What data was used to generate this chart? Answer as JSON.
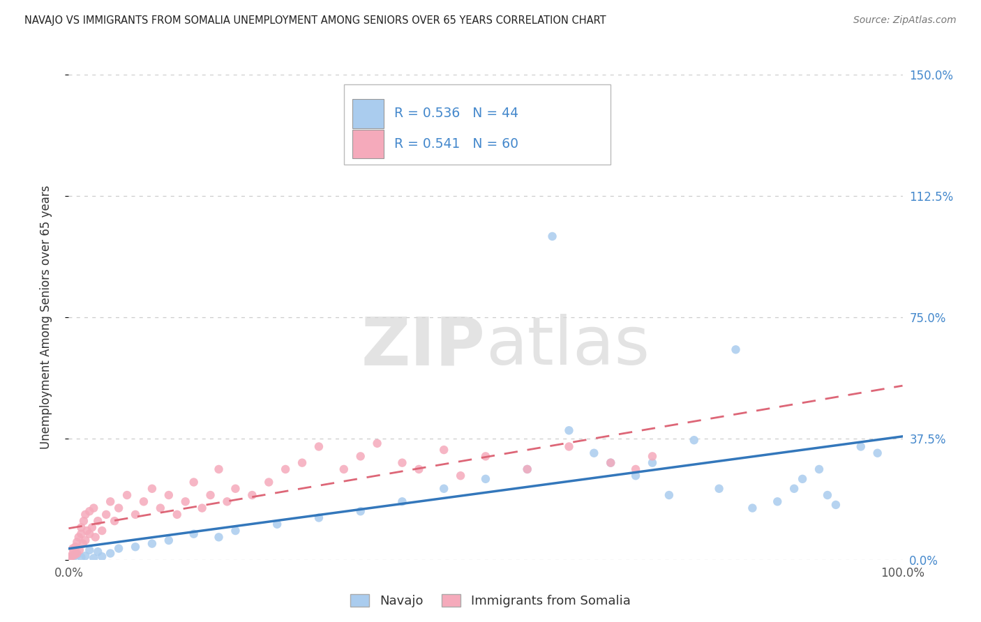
{
  "title": "NAVAJO VS IMMIGRANTS FROM SOMALIA UNEMPLOYMENT AMONG SENIORS OVER 65 YEARS CORRELATION CHART",
  "source": "Source: ZipAtlas.com",
  "ylabel": "Unemployment Among Seniors over 65 years",
  "xlim": [
    0,
    100
  ],
  "ylim": [
    0,
    150
  ],
  "xticks": [
    0,
    25,
    50,
    75,
    100
  ],
  "xtick_labels": [
    "0.0%",
    "",
    "",
    "",
    "100.0%"
  ],
  "yticks": [
    0,
    37.5,
    75,
    112.5,
    150
  ],
  "ytick_labels_right": [
    "0.0%",
    "37.5%",
    "75.0%",
    "112.5%",
    "150.0%"
  ],
  "navajo_R": "0.536",
  "navajo_N": "44",
  "somalia_R": "0.541",
  "somalia_N": "60",
  "navajo_dot_color": "#aaccee",
  "somalia_dot_color": "#f5aabb",
  "navajo_line_color": "#3377bb",
  "somalia_line_color": "#dd6677",
  "legend_navajo": "Navajo",
  "legend_somalia": "Immigrants from Somalia",
  "background_color": "#ffffff",
  "grid_color": "#cccccc",
  "title_color": "#222222",
  "source_color": "#777777",
  "right_tick_color": "#4488cc",
  "legend_text_color": "#4488cc",
  "navajo_x": [
    0.3,
    0.5,
    0.8,
    1.0,
    1.5,
    2.0,
    2.5,
    3.0,
    3.5,
    4.0,
    5.0,
    6.0,
    8.0,
    10.0,
    12.0,
    15.0,
    18.0,
    20.0,
    25.0,
    30.0,
    35.0,
    40.0,
    45.0,
    50.0,
    55.0,
    58.0,
    60.0,
    63.0,
    65.0,
    68.0,
    70.0,
    72.0,
    75.0,
    78.0,
    80.0,
    82.0,
    85.0,
    87.0,
    88.0,
    90.0,
    91.0,
    92.0,
    95.0,
    97.0
  ],
  "navajo_y": [
    1.0,
    0.5,
    2.0,
    1.5,
    0.8,
    1.2,
    3.0,
    0.5,
    2.5,
    1.0,
    2.0,
    3.5,
    4.0,
    5.0,
    6.0,
    8.0,
    7.0,
    9.0,
    11.0,
    13.0,
    15.0,
    18.0,
    22.0,
    25.0,
    28.0,
    100.0,
    40.0,
    33.0,
    30.0,
    26.0,
    30.0,
    20.0,
    37.0,
    22.0,
    65.0,
    16.0,
    18.0,
    22.0,
    25.0,
    28.0,
    20.0,
    17.0,
    35.0,
    33.0
  ],
  "somalia_x": [
    0.2,
    0.3,
    0.5,
    0.5,
    0.7,
    0.8,
    1.0,
    1.0,
    1.2,
    1.3,
    1.5,
    1.5,
    1.7,
    1.8,
    2.0,
    2.0,
    2.2,
    2.5,
    2.5,
    2.8,
    3.0,
    3.2,
    3.5,
    4.0,
    4.5,
    5.0,
    5.5,
    6.0,
    7.0,
    8.0,
    9.0,
    10.0,
    11.0,
    12.0,
    13.0,
    14.0,
    15.0,
    16.0,
    17.0,
    18.0,
    19.0,
    20.0,
    22.0,
    24.0,
    26.0,
    28.0,
    30.0,
    33.0,
    35.0,
    37.0,
    40.0,
    42.0,
    45.0,
    47.0,
    50.0,
    55.0,
    60.0,
    65.0,
    68.0,
    70.0
  ],
  "somalia_y": [
    0.5,
    1.0,
    2.0,
    3.5,
    1.5,
    4.0,
    2.0,
    5.5,
    7.0,
    3.0,
    8.0,
    10.0,
    5.0,
    12.0,
    6.0,
    14.0,
    9.0,
    15.0,
    8.0,
    10.0,
    16.0,
    7.0,
    12.0,
    9.0,
    14.0,
    18.0,
    12.0,
    16.0,
    20.0,
    14.0,
    18.0,
    22.0,
    16.0,
    20.0,
    14.0,
    18.0,
    24.0,
    16.0,
    20.0,
    28.0,
    18.0,
    22.0,
    20.0,
    24.0,
    28.0,
    30.0,
    35.0,
    28.0,
    32.0,
    36.0,
    30.0,
    28.0,
    34.0,
    26.0,
    32.0,
    28.0,
    35.0,
    30.0,
    28.0,
    32.0
  ]
}
